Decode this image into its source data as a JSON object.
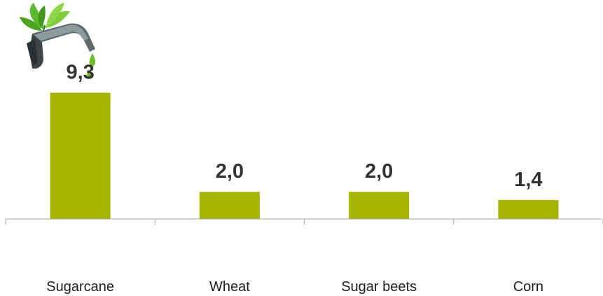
{
  "chart_data": {
    "type": "bar",
    "categories": [
      "Sugarcane",
      "Wheat",
      "Sugar beets",
      "Corn"
    ],
    "values": [
      9.3,
      2.0,
      2.0,
      1.4
    ],
    "value_labels": [
      "9,3",
      "2,0",
      "2,0",
      "1,4"
    ],
    "title": "",
    "xlabel": "",
    "ylabel": "",
    "ylim": [
      0,
      10
    ],
    "grid": false,
    "legend": "none",
    "bar_color": "#a8b400",
    "decoration": "biofuel-pump-nozzle-with-leaves"
  }
}
